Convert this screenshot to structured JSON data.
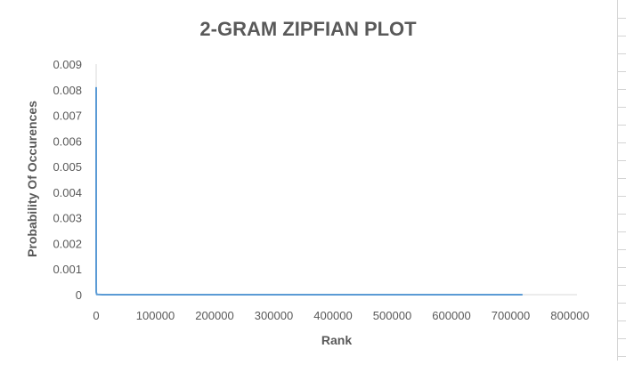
{
  "chart_data": {
    "type": "line",
    "title": "2-GRAM ZIPFIAN PLOT",
    "xlabel": "Rank",
    "ylabel": "Probability Of Occurences",
    "xlim": [
      0,
      800000
    ],
    "ylim": [
      0,
      0.009
    ],
    "x_ticks": [
      "0",
      "100000",
      "200000",
      "300000",
      "400000",
      "500000",
      "600000",
      "700000",
      "800000"
    ],
    "y_ticks": [
      "0",
      "0.001",
      "0.002",
      "0.003",
      "0.004",
      "0.005",
      "0.006",
      "0.007",
      "0.008",
      "0.009"
    ],
    "grid": false,
    "legend": "none",
    "series_color": "#5B9BD5",
    "series": [
      {
        "x": [
          1,
          2,
          5,
          20,
          100,
          1000,
          10000,
          100000,
          300000,
          500000,
          720000
        ],
        "y": [
          0.0081,
          0.0045,
          0.0018,
          0.0005,
          0.0001,
          1e-05,
          2e-06,
          3e-07,
          1e-07,
          6e-08,
          4e-08
        ]
      }
    ]
  }
}
